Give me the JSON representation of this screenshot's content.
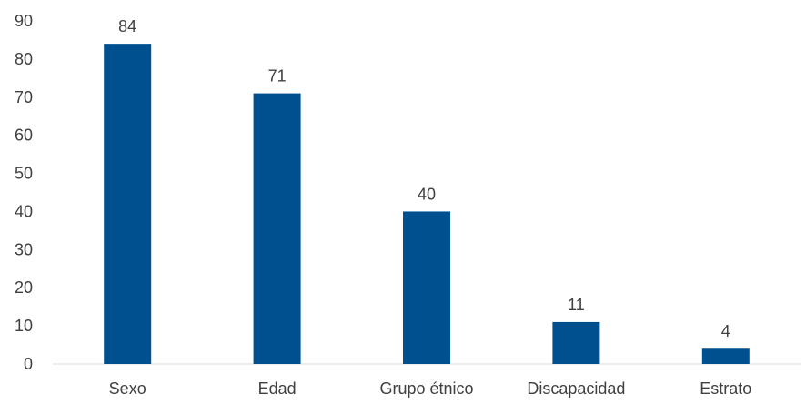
{
  "chart_data": {
    "type": "bar",
    "categories": [
      "Sexo",
      "Edad",
      "Grupo étnico",
      "Discapacidad",
      "Estrato"
    ],
    "values": [
      84,
      71,
      40,
      11,
      4
    ],
    "data_labels": [
      "84",
      "71",
      "40",
      "11",
      "4"
    ],
    "title": "",
    "xlabel": "",
    "ylabel": "",
    "ylim": [
      0,
      90
    ],
    "yticks": [
      0,
      10,
      20,
      30,
      40,
      50,
      60,
      70,
      80,
      90
    ],
    "ytick_labels": [
      "0",
      "10",
      "20",
      "30",
      "40",
      "50",
      "60",
      "70",
      "80",
      "90"
    ],
    "grid": false,
    "legend": "none",
    "bar_color": "#00508F",
    "axis_color": "#D9D9D9",
    "text_color": "#404040"
  }
}
